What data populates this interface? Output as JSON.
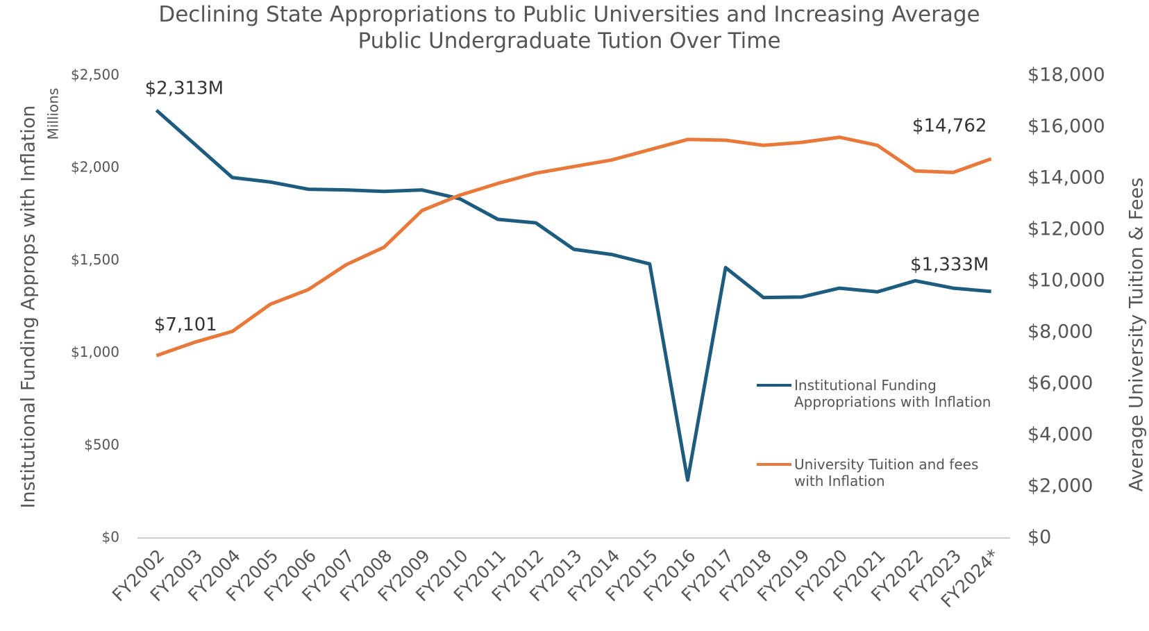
{
  "chart_data": {
    "type": "line",
    "title": "Declining State Appropriations to Public Universities and Increasing Average Public Undergraduate Tution Over Time",
    "ylabel": "Institutional Funding Approps with Inflation",
    "yunit": "Millions",
    "y2label": "Average University Tuition & Fees",
    "categories": [
      "FY2002",
      "FY2003",
      "FY2004",
      "FY2005",
      "FY2006",
      "FY2007",
      "FY2008",
      "FY2009",
      "FY2010",
      "FY2011",
      "FY2012",
      "FY2013",
      "FY2014",
      "FY2015",
      "FY2016",
      "FY2017",
      "FY2018",
      "FY2019",
      "FY2020",
      "FY2021",
      "FY2022",
      "FY2023",
      "FY2024*"
    ],
    "series": [
      {
        "name": "Institutional Funding Appropriations with Inflation",
        "color": "#1d5c7e",
        "axis": "y",
        "values": [
          2313,
          2131,
          1949,
          1925,
          1886,
          1882,
          1874,
          1882,
          1834,
          1723,
          1704,
          1561,
          1533,
          1482,
          313,
          1462,
          1300,
          1303,
          1351,
          1331,
          1391,
          1351,
          1333
        ]
      },
      {
        "name": "University Tuition and fees with Inflation",
        "color": "#e8793a",
        "axis": "y2",
        "values": [
          7101,
          7616,
          8043,
          9099,
          9669,
          10639,
          11323,
          12750,
          13349,
          13805,
          14204,
          14461,
          14718,
          15117,
          15516,
          15488,
          15288,
          15402,
          15602,
          15288,
          14290,
          14233,
          14762
        ]
      }
    ],
    "annotations": [
      "$2,313M",
      "$7,101",
      "$14,762",
      "$1,333M"
    ],
    "ylim": [
      0,
      2500
    ],
    "yticks": [
      {
        "value": 0,
        "label": "$0"
      },
      {
        "value": 500,
        "label": "$500"
      },
      {
        "value": 1000,
        "label": "$1,000"
      },
      {
        "value": 1500,
        "label": "$1,500"
      },
      {
        "value": 2000,
        "label": "$2,000"
      },
      {
        "value": 2500,
        "label": "$2,500"
      }
    ],
    "y2lim": [
      0,
      18000
    ],
    "y2ticks": [
      {
        "value": 0,
        "label": "$0"
      },
      {
        "value": 2000,
        "label": "$2,000"
      },
      {
        "value": 4000,
        "label": "$4,000"
      },
      {
        "value": 6000,
        "label": "$6,000"
      },
      {
        "value": 8000,
        "label": "$8,000"
      },
      {
        "value": 10000,
        "label": "$10,000"
      },
      {
        "value": 12000,
        "label": "$12,000"
      },
      {
        "value": 14000,
        "label": "$14,000"
      },
      {
        "value": 16000,
        "label": "$16,000"
      },
      {
        "value": 18000,
        "label": "$18,000"
      }
    ],
    "grid": false,
    "legend": "center right"
  }
}
